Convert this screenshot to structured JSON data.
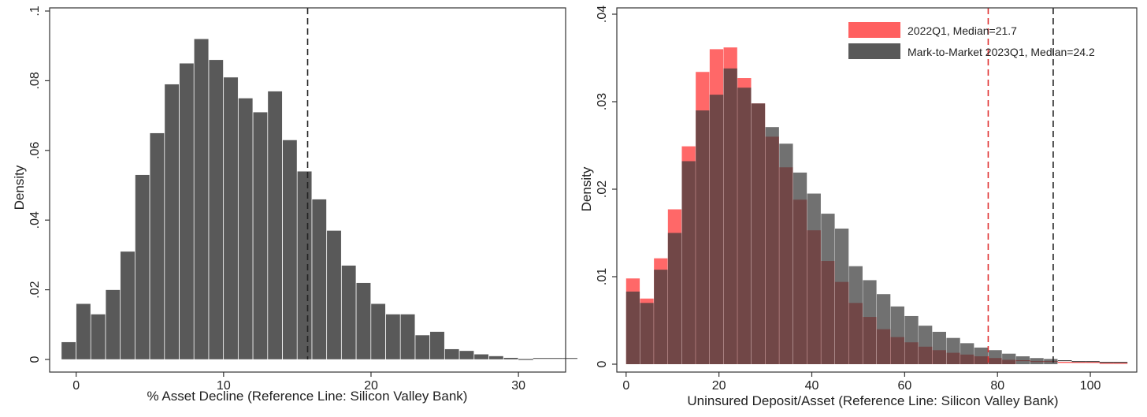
{
  "colors": {
    "gray_bar": "#595959",
    "red_bar": "#ff4d4d",
    "overlap": "#5a2a2a",
    "axis": "#333333",
    "ref_line_black": "#222222",
    "ref_line_red": "#e03030"
  },
  "chart_data": [
    {
      "type": "histogram",
      "title": "",
      "xlabel": "% Asset Decline (Reference Line: Silicon Valley Bank)",
      "ylabel": "Density",
      "xlim": [
        -1.8,
        33.2
      ],
      "ylim": [
        0,
        0.1
      ],
      "x_ticks": [
        0,
        10,
        20,
        30
      ],
      "x_tick_labels": [
        "0",
        "10",
        "20",
        "30"
      ],
      "y_ticks": [
        0,
        0.02,
        0.04,
        0.06,
        0.08,
        0.1
      ],
      "y_tick_labels": [
        "0",
        ".02",
        ".04",
        ".06",
        ".08",
        ".1"
      ],
      "grid": false,
      "reference_lines": [
        {
          "x": 15.7,
          "color": "#222222",
          "style": "dashed"
        }
      ],
      "series": [
        {
          "color": "#595959",
          "bin_start": -1.0,
          "bin_width": 1.0,
          "values": [
            0.005,
            0.016,
            0.013,
            0.02,
            0.031,
            0.053,
            0.065,
            0.079,
            0.085,
            0.092,
            0.086,
            0.081,
            0.075,
            0.071,
            0.077,
            0.063,
            0.054,
            0.046,
            0.037,
            0.027,
            0.022,
            0.016,
            0.013,
            0.013,
            0.007,
            0.008,
            0.003,
            0.0025,
            0.0015,
            0.001,
            0.0005,
            0.0,
            0.0003,
            0.0003,
            0.0003
          ]
        }
      ]
    },
    {
      "type": "histogram",
      "title": "",
      "xlabel": "Uninsured Deposit/Asset (Reference Line: Silicon Valley Bank)",
      "ylabel": "Density",
      "xlim": [
        -2,
        110
      ],
      "ylim": [
        0,
        0.04
      ],
      "x_ticks": [
        0,
        20,
        40,
        60,
        80,
        100
      ],
      "x_tick_labels": [
        "0",
        "20",
        "40",
        "60",
        "80",
        "100"
      ],
      "y_ticks": [
        0,
        0.01,
        0.02,
        0.03,
        0.04
      ],
      "y_tick_labels": [
        "0",
        ".01",
        ".02",
        ".03",
        ".04"
      ],
      "grid": false,
      "legend_position": "top-right",
      "reference_lines": [
        {
          "x": 78,
          "color": "#e03030",
          "style": "dashed"
        },
        {
          "x": 92,
          "color": "#222222",
          "style": "dashed"
        }
      ],
      "series": [
        {
          "name": "2022Q1, Median=21.7",
          "color": "#ff4d4d",
          "bin_start": 0,
          "bin_width": 3.0,
          "values": [
            0.0098,
            0.0075,
            0.0121,
            0.0177,
            0.0249,
            0.0334,
            0.036,
            0.0362,
            0.0327,
            0.0298,
            0.026,
            0.0225,
            0.0188,
            0.0153,
            0.0118,
            0.0094,
            0.007,
            0.0054,
            0.004,
            0.0031,
            0.0025,
            0.002,
            0.0016,
            0.0013,
            0.0011,
            0.0009,
            0.0007,
            0.0005,
            0.0004,
            0.0003,
            0.0003,
            0.0002,
            0.0002,
            0.0002,
            0.0001,
            0.0001
          ]
        },
        {
          "name": "Mark-to-Market 2023Q1, Median=24.2",
          "color": "#595959",
          "bin_start": 0,
          "bin_width": 3.0,
          "values": [
            0.0083,
            0.007,
            0.0108,
            0.015,
            0.0232,
            0.029,
            0.0308,
            0.0338,
            0.0316,
            0.0298,
            0.0271,
            0.0252,
            0.0219,
            0.0195,
            0.0172,
            0.0155,
            0.0112,
            0.0096,
            0.008,
            0.0066,
            0.0055,
            0.0044,
            0.0037,
            0.003,
            0.0024,
            0.0019,
            0.0016,
            0.0012,
            0.0009,
            0.0007,
            0.0006,
            0.0004,
            0.0003,
            0.0003,
            0.0002,
            0.0002
          ]
        }
      ]
    }
  ]
}
